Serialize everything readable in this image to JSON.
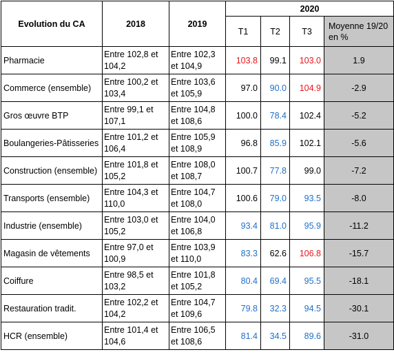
{
  "headers": {
    "title": "Evolution du CA",
    "y2018": "2018",
    "y2019": "2019",
    "y2020": "2020",
    "t1": "T1",
    "t2": "T2",
    "t3": "T3",
    "avg": "Moyenne 19/20 en %"
  },
  "colors": {
    "red": "#e8141a",
    "blue": "#1f6fc8",
    "avg_bg": "#c6c6c6"
  },
  "rows": [
    {
      "category": "Pharmacie",
      "r2018": "Entre 102,8 et 104,2",
      "r2019": "Entre 102,3 et 104,9",
      "t1": "103.8",
      "t1c": "red",
      "t2": "99.1",
      "t2c": "black",
      "t3": "103.0",
      "t3c": "red",
      "avg": "1.9"
    },
    {
      "category": "Commerce (ensemble)",
      "r2018": "Entre 100,2 et 103,4",
      "r2019": "Entre 103,6 et 105,9",
      "t1": "97.0",
      "t1c": "black",
      "t2": "90.0",
      "t2c": "blue",
      "t3": "104.9",
      "t3c": "red",
      "avg": "-2.9"
    },
    {
      "category": "Gros œuvre BTP",
      "r2018": "Entre 99,1 et 107,1",
      "r2019": "Entre 104,8 et 108,6",
      "t1": "100.0",
      "t1c": "black",
      "t2": "78.4",
      "t2c": "blue",
      "t3": "102.4",
      "t3c": "black",
      "avg": "-5.2"
    },
    {
      "category": "Boulangeries-Pâtisseries",
      "r2018": "Entre 101,2 et 106,4",
      "r2019": "Entre 105,9 et 108,9",
      "t1": "96.8",
      "t1c": "black",
      "t2": "85.9",
      "t2c": "blue",
      "t3": "102.1",
      "t3c": "black",
      "avg": "-5.6"
    },
    {
      "category": "Construction (ensemble)",
      "r2018": "Entre 101,8 et 105,2",
      "r2019": "Entre 108,0 et 108,7",
      "t1": "100.7",
      "t1c": "black",
      "t2": "77.8",
      "t2c": "blue",
      "t3": "99.0",
      "t3c": "black",
      "avg": "-7.2"
    },
    {
      "category": "Transports (ensemble)",
      "r2018": "Entre 104,3 et 110,0",
      "r2019": "Entre 104,7 et 108,0",
      "t1": "100.6",
      "t1c": "black",
      "t2": "79.0",
      "t2c": "blue",
      "t3": "93.5",
      "t3c": "blue",
      "avg": "-8.0"
    },
    {
      "category": "Industrie (ensemble)",
      "r2018": "Entre 103,0 et 105,2",
      "r2019": "Entre 104,0 et 106,8",
      "t1": "93.4",
      "t1c": "blue",
      "t2": "81.0",
      "t2c": "blue",
      "t3": "95.9",
      "t3c": "blue",
      "avg": "-11.2"
    },
    {
      "category": "Magasin de vêtements",
      "r2018": "Entre 97,0 et 100,9",
      "r2019": "Entre 103,9 et 110,0",
      "t1": "83.3",
      "t1c": "blue",
      "t2": "62.6",
      "t2c": "black",
      "t3": "106.8",
      "t3c": "red",
      "avg": "-15.7"
    },
    {
      "category": "Coiffure",
      "r2018": "Entre 98,5 et 103,2",
      "r2019": "Entre 101,8 et 105,2",
      "t1": "80.4",
      "t1c": "blue",
      "t2": "69.4",
      "t2c": "blue",
      "t3": "95.5",
      "t3c": "blue",
      "avg": "-18.1"
    },
    {
      "category": "Restauration tradit.",
      "r2018": "Entre 102,2 et 104,2",
      "r2019": "Entre 104,7 et 109,6",
      "t1": "79.8",
      "t1c": "blue",
      "t2": "32.3",
      "t2c": "blue",
      "t3": "94.5",
      "t3c": "blue",
      "avg": "-30.1"
    },
    {
      "category": "HCR (ensemble)",
      "r2018": "Entre 101,4 et 104,6",
      "r2019": "Entre 106,5 et 108,6",
      "t1": "81.4",
      "t1c": "blue",
      "t2": "34.5",
      "t2c": "blue",
      "t3": "89.6",
      "t3c": "blue",
      "avg": "-31.0"
    }
  ]
}
